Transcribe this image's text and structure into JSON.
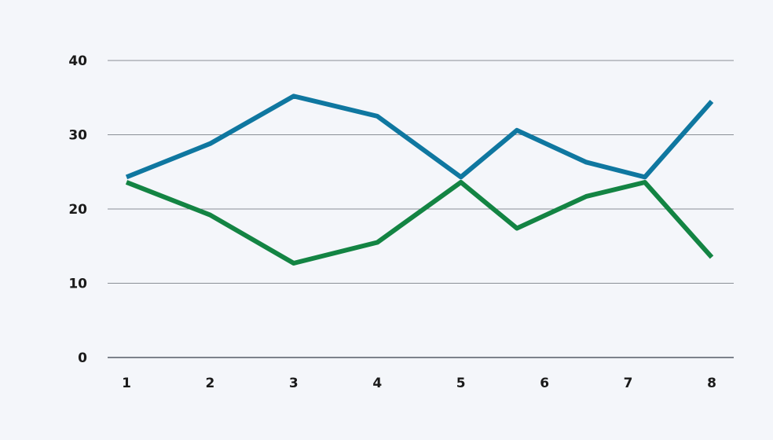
{
  "chart_data": {
    "type": "line",
    "title": "",
    "xlabel": "",
    "ylabel": "",
    "categories": [
      "1",
      "2",
      "3",
      "4",
      "5",
      "6",
      "7",
      "8"
    ],
    "x": [
      1,
      2,
      3,
      4,
      5,
      6,
      7,
      8
    ],
    "ylim": [
      0,
      40
    ],
    "yticks": [
      "0",
      "10",
      "20",
      "30",
      "40"
    ],
    "grid": true,
    "legend": "none",
    "series": [
      {
        "x": [
          1,
          2,
          3,
          4,
          5,
          5.67,
          6.5,
          7.2,
          8
        ],
        "values": [
          24.3,
          28.8,
          35.2,
          32.5,
          24.3,
          30.6,
          26.3,
          24.3,
          34.5
        ],
        "color": "#0f77a0"
      },
      {
        "x": [
          1,
          2,
          3,
          4,
          5,
          5.67,
          6.5,
          7.2,
          8
        ],
        "values": [
          23.6,
          19.2,
          12.7,
          15.5,
          23.6,
          17.4,
          21.7,
          23.6,
          13.5
        ],
        "color": "#138443"
      }
    ]
  }
}
